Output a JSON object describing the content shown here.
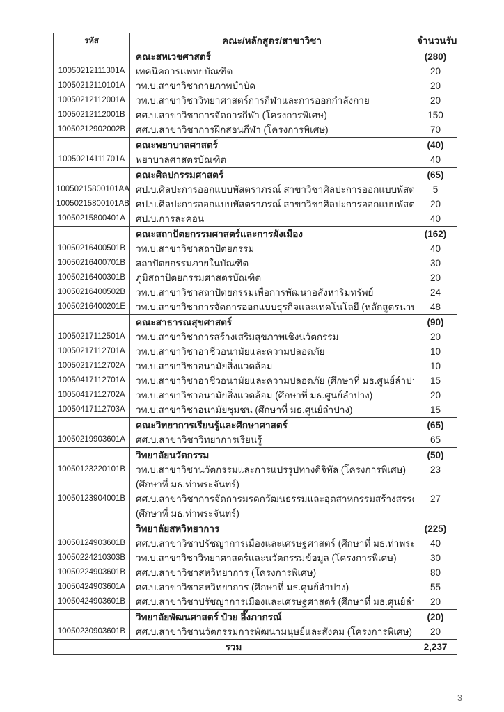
{
  "page_number": "3",
  "colors": {
    "border": "#3a3a3a",
    "text": "#1f1f1f",
    "page_number": "#6b6b6b",
    "background": "#ffffff"
  },
  "table": {
    "headers": {
      "code": "รหัส",
      "program": "คณะ/หลักสูตร/สาขาวิชา",
      "quota": "จำนวนรับ"
    },
    "rows": [
      {
        "type": "section",
        "code": "",
        "name": "คณะสหเวชศาสตร์",
        "quota": "(280)"
      },
      {
        "type": "program",
        "code": "10050212111301A",
        "name": "เทคนิคการแพทยบัณฑิต",
        "quota": "20"
      },
      {
        "type": "program",
        "code": "10050212110101A",
        "name": "วท.บ.สาขาวิชากายภาพบำบัด",
        "quota": "20"
      },
      {
        "type": "program",
        "code": "10050212112001A",
        "name": "วท.บ.สาขาวิชาวิทยาศาสตร์การกีฬาและการออกกำลังกาย",
        "quota": "20"
      },
      {
        "type": "program",
        "code": "10050212112001B",
        "name": "ศศ.บ.สาขาวิชาการจัดการกีฬา (โครงการพิเศษ)",
        "quota": "150"
      },
      {
        "type": "program",
        "code": "10050212902002B",
        "name": "ศศ.บ.สาขาวิชาการฝึกสอนกีฬา (โครงการพิเศษ)",
        "quota": "70"
      },
      {
        "type": "section",
        "code": "",
        "name": "คณะพยาบาลศาสตร์",
        "quota": "(40)"
      },
      {
        "type": "program",
        "code": "10050214111701A",
        "name": "พยาบาลศาสตรบัณฑิต",
        "quota": "40"
      },
      {
        "type": "section",
        "code": "",
        "name": "คณะศิลปกรรมศาสตร์",
        "quota": "(65)"
      },
      {
        "type": "program",
        "code": "10050215800101AA",
        "name": "ศป.บ.ศิลปะการออกแบบพัสตราภรณ์ สาขาวิชาศิลปะการออกแบบพัสตราภรณ์ วิชาเอกสิ่งทอ",
        "quota": "5"
      },
      {
        "type": "program",
        "code": "10050215800101AB",
        "name": "ศป.บ.ศิลปะการออกแบบพัสตราภรณ์ สาขาวิชาศิลปะการออกแบบพัสตราภรณ์ วิชาเอกแฟชั่น",
        "quota": "20"
      },
      {
        "type": "program",
        "code": "10050215800401A",
        "name": "ศป.บ.การละคอน",
        "quota": "40"
      },
      {
        "type": "section",
        "code": "",
        "name": "คณะสถาปัตยกรรมศาสตร์และการผังเมือง",
        "quota": "(162)"
      },
      {
        "type": "program",
        "code": "10050216400501B",
        "name": "วท.บ.สาขาวิชาสถาปัตยกรรม",
        "quota": "40"
      },
      {
        "type": "program",
        "code": "10050216400701B",
        "name": "สถาปัตยกรรมภายในบัณฑิต",
        "quota": "30"
      },
      {
        "type": "program",
        "code": "10050216400301B",
        "name": "ภูมิสถาปัตยกรรมศาสตรบัณฑิต",
        "quota": "20"
      },
      {
        "type": "program",
        "code": "10050216400502B",
        "name": "วท.บ.สาขาวิชาสถาปัตยกรรมเพื่อการพัฒนาอสังหาริมทรัพย์",
        "quota": "24"
      },
      {
        "type": "program",
        "code": "10050216400201E",
        "name": "วท.บ.สาขาวิชาการจัดการออกแบบธุรกิจและเทคโนโลยี (หลักสูตรนานาชาติ) (DBTM)",
        "quota": "48"
      },
      {
        "type": "section",
        "code": "",
        "name": "คณะสาธารณสุขศาสตร์",
        "quota": "(90)"
      },
      {
        "type": "program",
        "code": "10050217112501A",
        "name": "วท.บ.สาขาวิชาการสร้างเสริมสุขภาพเชิงนวัตกรรม",
        "quota": "20"
      },
      {
        "type": "program",
        "code": "10050217112701A",
        "name": "วท.บ.สาขาวิชาอาชีวอนามัยและความปลอดภัย",
        "quota": "10"
      },
      {
        "type": "program",
        "code": "10050217112702A",
        "name": "วท.บ.สาขาวิชาอนามัยสิ่งแวดล้อม",
        "quota": "10"
      },
      {
        "type": "program",
        "code": "10050417112701A",
        "name": "วท.บ.สาขาวิชาอาชีวอนามัยและความปลอดภัย (ศึกษาที่ มธ.ศูนย์ลำปาง)",
        "quota": "15"
      },
      {
        "type": "program",
        "code": "10050417112702A",
        "name": "วท.บ.สาขาวิชาอนามัยสิ่งแวดล้อม (ศึกษาที่ มธ.ศูนย์ลำปาง)",
        "quota": "20"
      },
      {
        "type": "program",
        "code": "10050417112703A",
        "name": "วท.บ.สาขาวิชาอนามัยชุมชน (ศึกษาที่ มธ.ศูนย์ลำปาง)",
        "quota": "15"
      },
      {
        "type": "section",
        "code": "",
        "name": "คณะวิทยาการเรียนรู้และศึกษาศาสตร์",
        "quota": "(65)"
      },
      {
        "type": "program",
        "code": "10050219903601A",
        "name": "ศศ.บ.สาขาวิชาวิทยาการเรียนรู้",
        "quota": "65"
      },
      {
        "type": "section",
        "code": "",
        "name": "วิทยาลัยนวัตกรรม",
        "quota": "(50)"
      },
      {
        "type": "program",
        "code": "10050123220101B",
        "name": "วท.บ.สาขาวิชานวัตกรรมและการแปรรูปทางดิจิทัล (โครงการพิเศษ)",
        "name2": "(ศึกษาที่ มธ.ท่าพระจันทร์)",
        "quota": "23"
      },
      {
        "type": "program",
        "code": "10050123904001B",
        "name": "ศศ.บ.สาขาวิชาการจัดการมรดกวัฒนธรรมและอุตสาหกรรมสร้างสรรค์ (โครงการพิเศษ)",
        "name2": "(ศึกษาที่ มธ.ท่าพระจันทร์)",
        "quota": "27"
      },
      {
        "type": "section",
        "code": "",
        "name": "วิทยาลัยสหวิทยาการ",
        "quota": "(225)"
      },
      {
        "type": "program",
        "code": "10050124903601B",
        "name": "ศศ.บ.สาขาวิชาปรัชญาการเมืองและเศรษฐศาสตร์ (ศึกษาที่ มธ.ท่าพระจันทร์)",
        "quota": "40"
      },
      {
        "type": "program",
        "code": "10050224210303B",
        "name": "วท.บ.สาขาวิชาวิทยาศาสตร์และนวัตกรรมข้อมูล (โครงการพิเศษ)",
        "quota": "30"
      },
      {
        "type": "program",
        "code": "10050224903601B",
        "name": "ศศ.บ.สาขาวิชาสหวิทยาการ (โครงการพิเศษ)",
        "quota": "80"
      },
      {
        "type": "program",
        "code": "10050424903601A",
        "name": "ศศ.บ.สาขาวิชาสหวิทยาการ (ศึกษาที่ มธ.ศูนย์ลำปาง)",
        "quota": "55"
      },
      {
        "type": "program",
        "code": "10050424903601B",
        "name": "ศศ.บ.สาขาวิชาปรัชญาการเมืองและเศรษฐศาสตร์ (ศึกษาที่ มธ.ศูนย์ลำปาง)",
        "quota": "20"
      },
      {
        "type": "section",
        "code": "",
        "name": "วิทยาลัยพัฒนศาสตร์ ป๋วย อึ๊งภากรณ์",
        "quota": "(20)"
      },
      {
        "type": "program",
        "code": "10050230903601B",
        "name": "ศศ.บ.สาขาวิชานวัตกรรมการพัฒนามนุษย์และสังคม (โครงการพิเศษ)",
        "quota": "20"
      }
    ],
    "total": {
      "label": "รวม",
      "value": "2,237"
    }
  }
}
